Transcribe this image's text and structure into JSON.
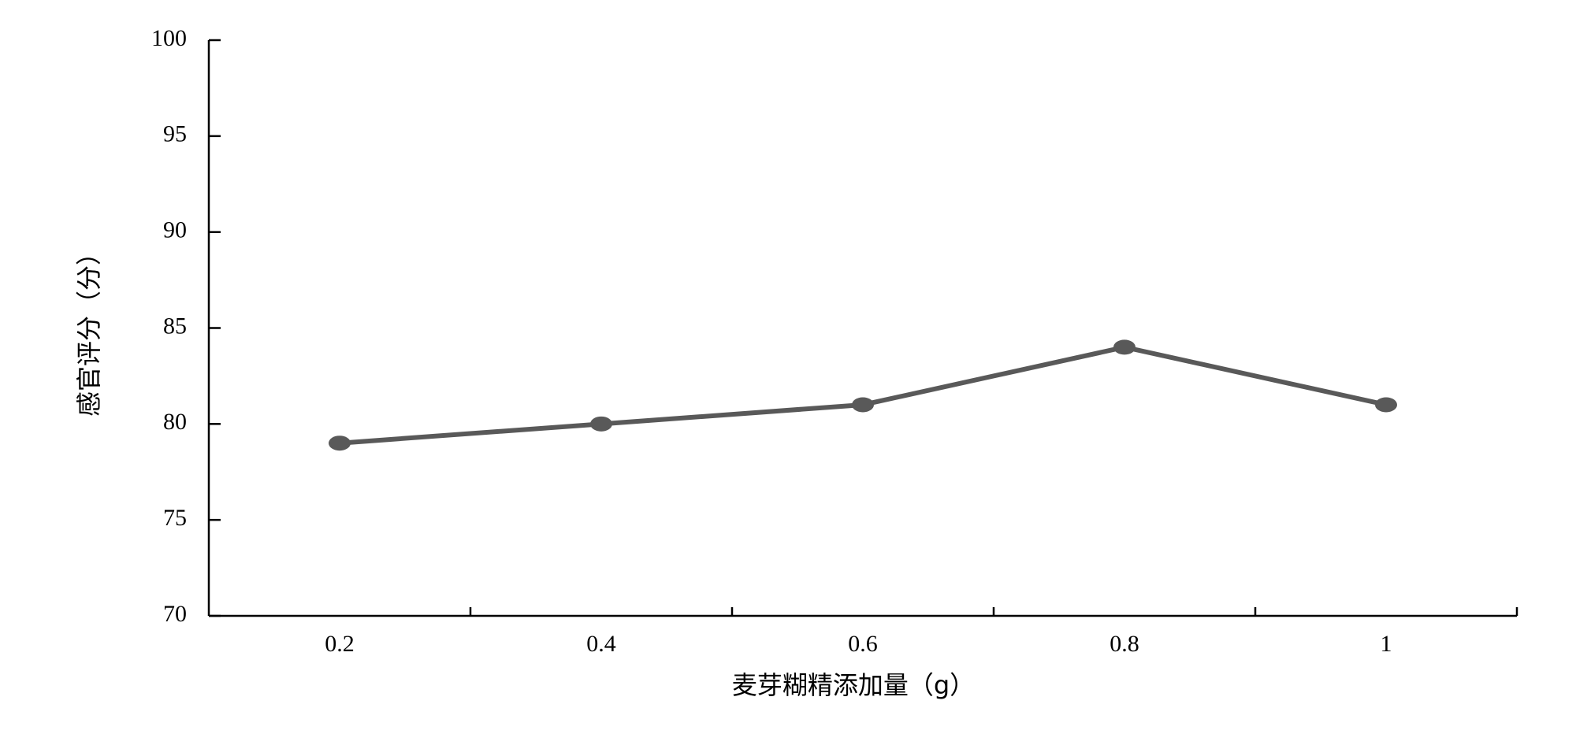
{
  "chart_data": {
    "type": "line",
    "x_label": "麦芽糊精添加量（g）",
    "y_label": "感官评分（分）",
    "categories": [
      "0.2",
      "0.4",
      "0.6",
      "0.8",
      "1"
    ],
    "values": [
      79,
      80,
      81,
      84,
      81
    ],
    "color": "#595959",
    "ylim": [
      70,
      100
    ],
    "yticks": [
      70,
      75,
      80,
      85,
      90,
      95,
      100
    ],
    "grid": false
  }
}
